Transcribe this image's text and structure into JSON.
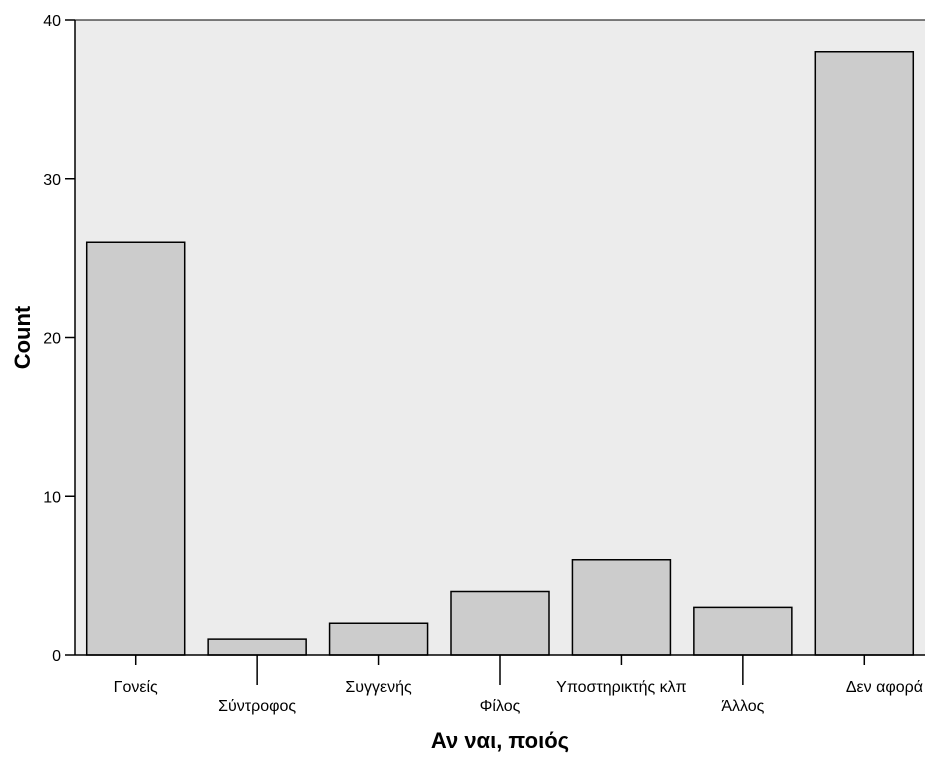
{
  "chart_data": {
    "type": "bar",
    "categories": [
      "Γονείς",
      "Σύντροφος",
      "Συγγενής",
      "Φίλος",
      "Υποστηρικτής κλπ",
      "Άλλος",
      "Δεν αφορά"
    ],
    "values": [
      26,
      1,
      2,
      4,
      6,
      3,
      38
    ],
    "xlabel": "Αν ναι, ποιός",
    "ylabel": "Count",
    "ylim": [
      0,
      40
    ],
    "yticks": [
      0,
      10,
      20,
      30,
      40
    ],
    "grid": false,
    "colors": {
      "plot_background": "#ececec",
      "bar_fill": "#cccccc",
      "bar_stroke": "#000000",
      "axis": "#000000"
    }
  }
}
